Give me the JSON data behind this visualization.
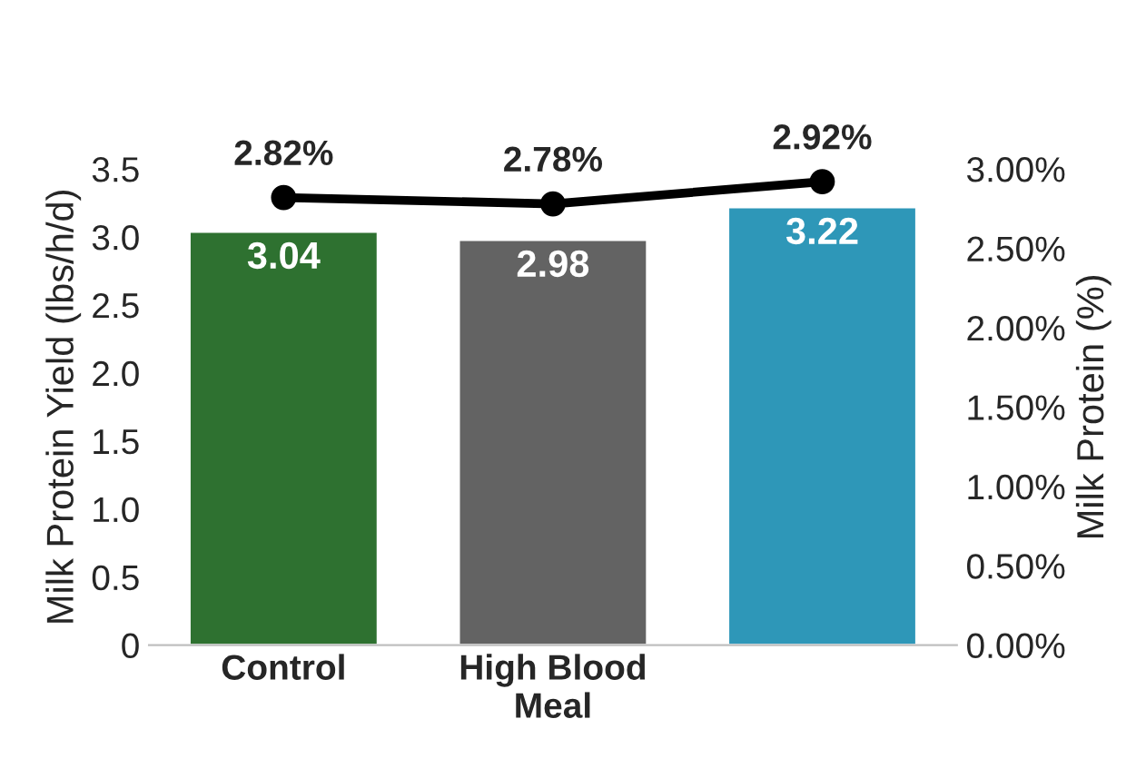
{
  "chart_data": {
    "type": "bar",
    "categories": [
      "Control",
      "High Blood\nMeal",
      null
    ],
    "ylabel": "Milk Protein Yield (lbs/h/d)",
    "y2label": "Milk Protein (%)",
    "ylim": [
      0,
      3.5
    ],
    "yticks": [
      0,
      {
        "value": 0.5,
        "label": "0.5"
      },
      {
        "value": 1,
        "label": "1.0"
      },
      {
        "value": 1.5,
        "label": "1.5"
      },
      {
        "value": 2,
        "label": "2.0"
      },
      {
        "value": 2.5,
        "label": "2.5"
      },
      {
        "value": 3,
        "label": "3.0"
      },
      {
        "value": 3.5,
        "label": "3.5"
      }
    ],
    "y2lim": [
      0,
      3
    ],
    "y2ticks": [
      {
        "value": 0,
        "label": "0.00%"
      },
      {
        "value": 0.5,
        "label": "0.50%"
      },
      {
        "value": 1,
        "label": "1.00%"
      },
      {
        "value": 1.5,
        "label": "1.50%"
      },
      {
        "value": 2,
        "label": "2.00%"
      },
      {
        "value": 2.5,
        "label": "2.50%"
      },
      {
        "value": 3,
        "label": "3.00%"
      }
    ],
    "data_labels": true,
    "grid": false,
    "legend": false,
    "series": [
      {
        "values": [
          3.04,
          2.98,
          3.22
        ],
        "colors": [
          "#2e7130",
          "#636363",
          "#2e97b8"
        ]
      },
      {
        "type": "line",
        "axis": "y2",
        "color": "#000000",
        "marker": "circle",
        "values": [
          2.82,
          2.78,
          2.92
        ],
        "value_labels": [
          "2.82%",
          "2.78%",
          "2.92%"
        ]
      }
    ]
  }
}
